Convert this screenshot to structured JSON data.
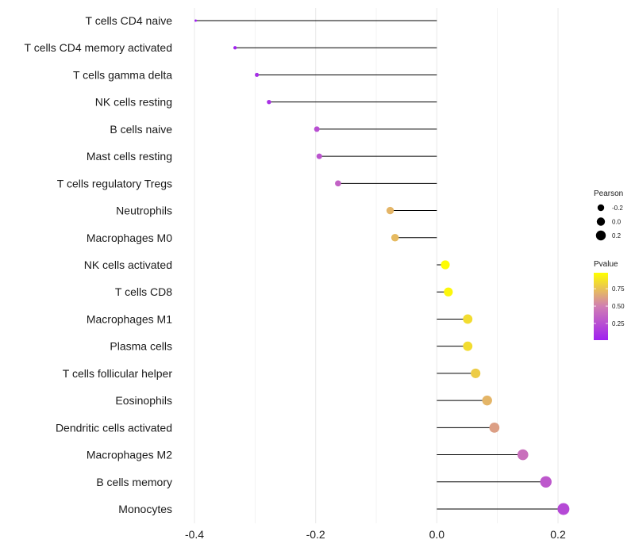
{
  "chart_data": {
    "type": "lollipop",
    "title": "",
    "xlabel": "",
    "ylabel": "",
    "xlim": [
      -0.44,
      0.22
    ],
    "x_ticks": [
      -0.4,
      -0.2,
      0.0,
      0.2
    ],
    "x_tick_labels": [
      "-0.4",
      "-0.2",
      "0.0",
      "0.2"
    ],
    "grid": true,
    "categories": [
      "T cells CD4 naive",
      "T cells CD4 memory activated",
      "T cells gamma delta",
      "NK cells resting",
      "B cells naive",
      "Mast cells resting",
      "T cells regulatory  Tregs",
      "Neutrophils",
      "Macrophages M0",
      "NK cells activated",
      "T cells CD8",
      "Macrophages M1",
      "Plasma cells",
      "T cells follicular helper",
      "Eosinophils",
      "Dendritic cells activated",
      "Macrophages M2",
      "B cells memory",
      "Monocytes"
    ],
    "series": [
      {
        "name": "Pearson",
        "values": [
          -0.398,
          -0.333,
          -0.297,
          -0.277,
          -0.198,
          -0.194,
          -0.163,
          -0.077,
          -0.069,
          0.014,
          0.019,
          0.051,
          0.051,
          0.064,
          0.083,
          0.095,
          0.142,
          0.18,
          0.209
        ]
      },
      {
        "name": "Pvalue",
        "values": [
          0.01,
          0.02,
          0.08,
          0.1,
          0.25,
          0.28,
          0.35,
          0.7,
          0.72,
          0.97,
          0.95,
          0.85,
          0.85,
          0.79,
          0.7,
          0.62,
          0.42,
          0.3,
          0.22
        ]
      }
    ],
    "legend": {
      "position": "right",
      "size_title": "Pearson",
      "size_entries": [
        {
          "label": "-0.2",
          "value": -0.2
        },
        {
          "label": "0.0",
          "value": 0.0
        },
        {
          "label": "0.2",
          "value": 0.2
        }
      ],
      "color_title": "Pvalue",
      "color_ticks": [
        {
          "label": "0.75",
          "value": 0.75
        },
        {
          "label": "0.50",
          "value": 0.5
        },
        {
          "label": "0.25",
          "value": 0.25
        }
      ],
      "color_range": [
        0.01,
        0.98
      ],
      "color_low": "#A020F0",
      "color_mid": "#D07EB3",
      "color_high": "#FFFF00"
    },
    "stem_color": "#000000",
    "grid_color": "#EBEBEB"
  }
}
